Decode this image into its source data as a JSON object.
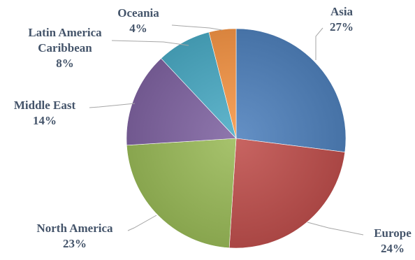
{
  "chart_data": {
    "type": "pie",
    "title": "",
    "slices": [
      {
        "name": "Asia",
        "value": 27,
        "label": "27%",
        "color": "#4f81bd"
      },
      {
        "name": "Europe",
        "value": 24,
        "label": "24%",
        "color": "#c0504d"
      },
      {
        "name": "North America",
        "value": 23,
        "label": "23%",
        "color": "#9bbb59"
      },
      {
        "name": "Middle East",
        "value": 14,
        "label": "14%",
        "color": "#8064a2"
      },
      {
        "name": "Latin America Caribbean",
        "value": 8,
        "label": "8%",
        "color": "#4bacc6"
      },
      {
        "name": "Oceania",
        "value": 4,
        "label": "4%",
        "color": "#f79646"
      }
    ],
    "start_angle": "12 o'clock",
    "direction": "clockwise",
    "legend": "none",
    "data_labels": "outside with leader lines"
  }
}
